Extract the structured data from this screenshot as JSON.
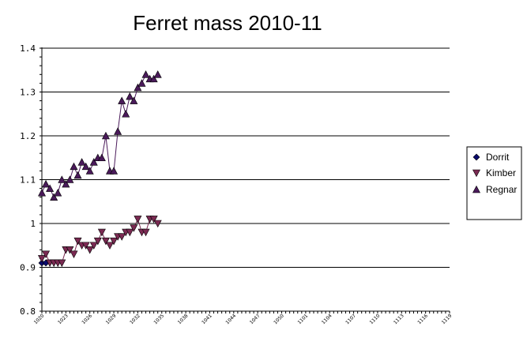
{
  "chart_data": {
    "type": "line",
    "title": "Ferret mass 2010-11",
    "xlabel": "",
    "ylabel": "",
    "ylim": [
      0.8,
      1.4
    ],
    "yticks": [
      "0.8",
      "0.9",
      "1",
      "1.1",
      "1.2",
      "1.3",
      "1.4"
    ],
    "xlim": [
      1020,
      1122
    ],
    "xticks": [
      "1020",
      "1023",
      "1026",
      "1029",
      "1032",
      "1035",
      "1038",
      "1041",
      "1044",
      "1047",
      "1050",
      "1101",
      "1104",
      "1107",
      "1110",
      "1113",
      "1116",
      "1119"
    ],
    "grid": "horizontal",
    "legend": "right",
    "series": [
      {
        "name": "Dorrit",
        "color": "#0a0a6e",
        "marker": "diamond",
        "x": [
          1020,
          1021
        ],
        "y": [
          0.91,
          0.91
        ]
      },
      {
        "name": "Kimber",
        "color": "#7a2a52",
        "marker": "triangle-down",
        "x": [
          1020,
          1021,
          1022,
          1023,
          1024,
          1025,
          1026,
          1027,
          1028,
          1029,
          1030,
          1031,
          1032,
          1033,
          1034,
          1035,
          1036,
          1037,
          1038,
          1039,
          1040,
          1041,
          1042,
          1043,
          1044,
          1045,
          1046,
          1047,
          1048,
          1049
        ],
        "y": [
          0.92,
          0.93,
          0.91,
          0.91,
          0.91,
          0.91,
          0.94,
          0.94,
          0.93,
          0.96,
          0.95,
          0.95,
          0.94,
          0.95,
          0.96,
          0.98,
          0.96,
          0.95,
          0.96,
          0.97,
          0.97,
          0.98,
          0.98,
          0.99,
          1.01,
          0.98,
          0.98,
          1.01,
          1.01,
          1.0
        ]
      },
      {
        "name": "Regnar",
        "color": "#4a1a5a",
        "marker": "triangle-up",
        "x": [
          1020,
          1021,
          1022,
          1023,
          1024,
          1025,
          1026,
          1027,
          1028,
          1029,
          1030,
          1031,
          1032,
          1033,
          1034,
          1035,
          1036,
          1037,
          1038,
          1039,
          1040,
          1041,
          1042,
          1043,
          1044,
          1045,
          1046,
          1047,
          1048,
          1049
        ],
        "y": [
          1.07,
          1.09,
          1.08,
          1.06,
          1.07,
          1.1,
          1.09,
          1.1,
          1.13,
          1.11,
          1.14,
          1.13,
          1.12,
          1.14,
          1.15,
          1.15,
          1.2,
          1.12,
          1.12,
          1.21,
          1.28,
          1.25,
          1.29,
          1.28,
          1.31,
          1.32,
          1.34,
          1.33,
          1.33,
          1.34
        ]
      }
    ]
  }
}
